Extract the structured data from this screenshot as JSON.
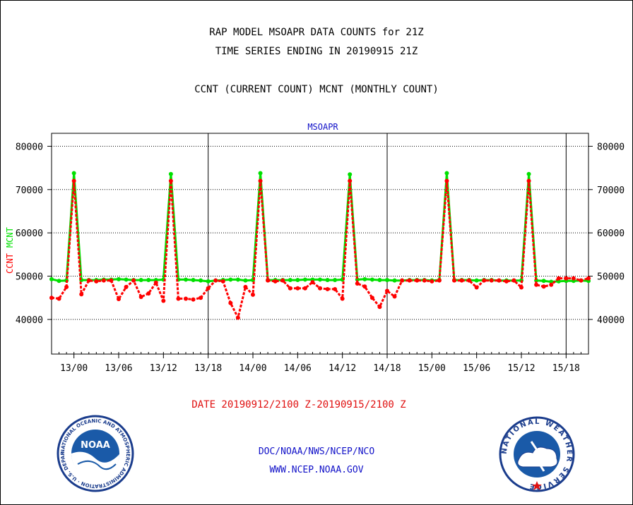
{
  "header": {
    "title_line1": "RAP MODEL MSOAPR DATA COUNTS for 21Z",
    "title_line2": "TIME SERIES ENDING IN 20190915 21Z",
    "title_line3": "CCNT (CURRENT COUNT) MCNT (MONTHLY COUNT)"
  },
  "footer": {
    "date_range": "DATE 20190912/2100 Z-20190915/2100 Z",
    "org_path": "DOC/NOAA/NWS/NCEP/NCO",
    "website": "WWW.NCEP.NOAA.GOV"
  },
  "logos": {
    "left": {
      "name": "noaa-logo",
      "text": "NOAA",
      "ring_text": "NATIONAL OCEANIC AND ATMOSPHERIC ADMINISTRATION · U.S. DEPARTMENT OF COMMERCE ·"
    },
    "right": {
      "name": "nws-logo",
      "ring_text": "NATIONAL WEATHER SERVICE"
    }
  },
  "colors": {
    "ccnt": "#ff0000",
    "mcnt": "#00e000",
    "subtitle": "#1010c8",
    "grid": "#000000"
  },
  "chart_data": {
    "type": "line",
    "title": "MSOAPR",
    "ylabel_parts": [
      "CCNT",
      "MCNT"
    ],
    "ylim": [
      32000,
      83000
    ],
    "yticks": [
      40000,
      50000,
      60000,
      70000,
      80000
    ],
    "ytick_labels": [
      "40000",
      "50000",
      "60000",
      "70000",
      "80000"
    ],
    "x_hour_range": [
      -3,
      69
    ],
    "xticks": [
      0,
      6,
      12,
      18,
      24,
      30,
      36,
      42,
      48,
      54,
      60,
      66
    ],
    "xtick_labels": [
      "13/00",
      "13/06",
      "13/12",
      "13/18",
      "14/00",
      "14/06",
      "14/12",
      "14/18",
      "15/00",
      "15/06",
      "15/12",
      "15/18"
    ],
    "day_boundaries": [
      18,
      42,
      66
    ],
    "x_units": "hours from 13/00 UTC",
    "grid": true,
    "series": [
      {
        "name": "CCNT",
        "x": [
          -3,
          -2,
          -1,
          0,
          1,
          2,
          3,
          4,
          5,
          6,
          7,
          8,
          9,
          10,
          11,
          12,
          13,
          14,
          15,
          16,
          17,
          18,
          19,
          20,
          21,
          22,
          23,
          24,
          25,
          26,
          27,
          28,
          29,
          30,
          31,
          32,
          33,
          34,
          35,
          36,
          37,
          38,
          39,
          40,
          41,
          42,
          43,
          44,
          45,
          46,
          47,
          48,
          49,
          50,
          51,
          52,
          53,
          54,
          55,
          56,
          57,
          58,
          59,
          60,
          61,
          62,
          63,
          64,
          65,
          66,
          67,
          68,
          69
        ],
        "values": [
          45000,
          44800,
          47500,
          72000,
          45800,
          49000,
          48800,
          49000,
          49000,
          44700,
          47500,
          49000,
          45200,
          46000,
          48500,
          44300,
          72000,
          44800,
          44800,
          44600,
          45000,
          47200,
          49000,
          48800,
          43800,
          40400,
          47500,
          45700,
          72000,
          49000,
          48800,
          49000,
          47200,
          47200,
          47200,
          48600,
          47200,
          47000,
          47000,
          44800,
          72000,
          48300,
          47600,
          45000,
          42900,
          46600,
          45300,
          49000,
          49000,
          49000,
          49000,
          48800,
          49000,
          72000,
          49000,
          49000,
          49000,
          47400,
          49000,
          49000,
          49000,
          48800,
          49000,
          47400,
          72000,
          48000,
          47600,
          48000,
          49500,
          49500,
          49500,
          49000,
          49500
        ]
      },
      {
        "name": "MCNT",
        "x": [
          -3,
          -2,
          -1,
          0,
          1,
          2,
          3,
          4,
          5,
          6,
          7,
          8,
          9,
          10,
          11,
          12,
          13,
          14,
          15,
          16,
          17,
          18,
          19,
          20,
          21,
          22,
          23,
          24,
          25,
          26,
          27,
          28,
          29,
          30,
          31,
          32,
          33,
          34,
          35,
          36,
          37,
          38,
          39,
          40,
          41,
          42,
          43,
          44,
          45,
          46,
          47,
          48,
          49,
          50,
          51,
          52,
          53,
          54,
          55,
          56,
          57,
          58,
          59,
          60,
          61,
          62,
          63,
          64,
          65,
          66,
          67,
          68,
          69
        ],
        "values": [
          49300,
          48900,
          49000,
          73800,
          49100,
          49100,
          49100,
          49200,
          49200,
          49300,
          49200,
          49100,
          49100,
          49100,
          49100,
          49200,
          73600,
          49200,
          49200,
          49100,
          49000,
          48800,
          49000,
          49100,
          49200,
          49200,
          49000,
          49100,
          73800,
          49100,
          49100,
          49100,
          49100,
          49100,
          49200,
          49200,
          49200,
          49100,
          49100,
          49200,
          73500,
          49200,
          49300,
          49200,
          49100,
          49100,
          49000,
          49000,
          49100,
          49100,
          49100,
          49000,
          49100,
          73800,
          49100,
          49100,
          49100,
          49000,
          49100,
          49100,
          49000,
          49000,
          49000,
          49000,
          73600,
          49000,
          48900,
          48700,
          48800,
          48900,
          48900,
          49000,
          48900
        ]
      }
    ]
  }
}
